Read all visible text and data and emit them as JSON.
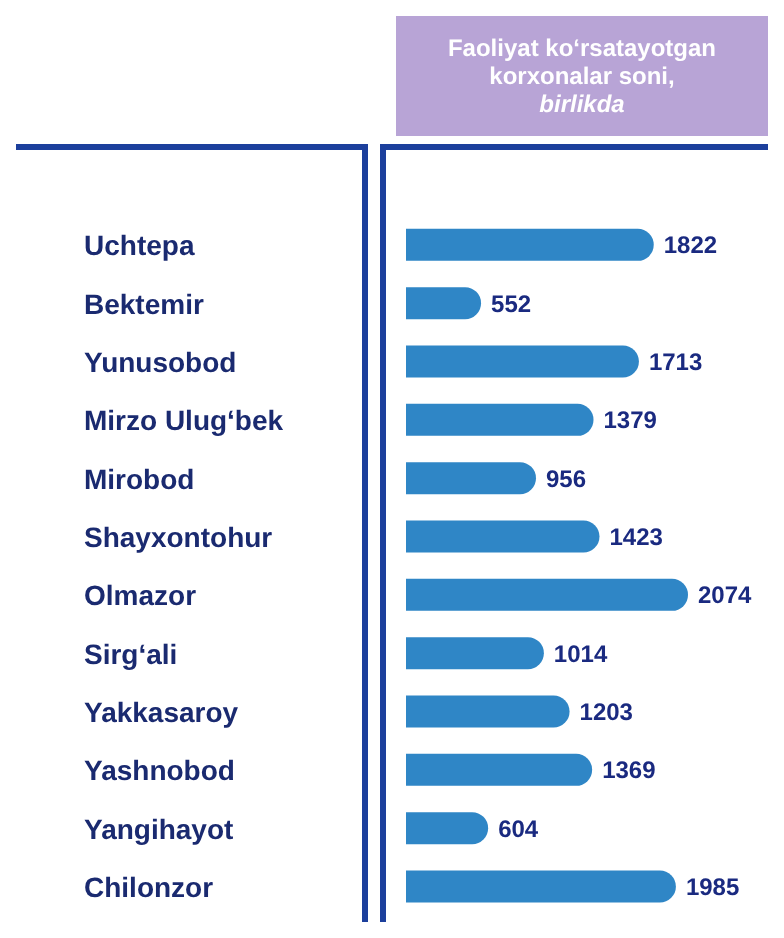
{
  "chart_data": {
    "type": "bar",
    "orientation": "horizontal",
    "title": "Faoliyat ko‘rsatayotgan korxonalar soni,",
    "subtitle": "birlikda",
    "categories": [
      "Uchtepa",
      "Bektemir",
      "Yunusobod",
      "Mirzo Ulug‘bek",
      "Mirobod",
      "Shayxontohur",
      "Olmazor",
      "Sirg‘ali",
      "Yakkasaroy",
      "Yashnobod",
      "Yangihayot",
      "Chilonzor"
    ],
    "values": [
      1822,
      552,
      1713,
      1379,
      956,
      1423,
      2074,
      1014,
      1203,
      1369,
      604,
      1985
    ],
    "color": "#2f86c6",
    "data_labels": true
  }
}
